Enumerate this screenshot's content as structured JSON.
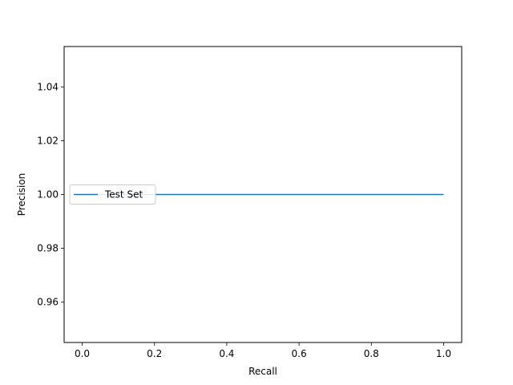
{
  "chart_data": {
    "type": "line",
    "title": "",
    "xlabel": "Recall",
    "ylabel": "Precision",
    "xlim": [
      -0.05,
      1.05
    ],
    "ylim": [
      0.945,
      1.055
    ],
    "xticks": [
      0.0,
      0.2,
      0.4,
      0.6,
      0.8,
      1.0
    ],
    "xtick_labels": [
      "0.0",
      "0.2",
      "0.4",
      "0.6",
      "0.8",
      "1.0"
    ],
    "yticks": [
      0.96,
      0.98,
      1.0,
      1.02,
      1.04
    ],
    "ytick_labels": [
      "0.96",
      "0.98",
      "1.00",
      "1.02",
      "1.04"
    ],
    "grid": false,
    "legend_position": "center-left",
    "series": [
      {
        "name": "Test Set",
        "color": "#1f77b4",
        "x": [
          0.0,
          1.0
        ],
        "y": [
          1.0,
          1.0
        ]
      }
    ]
  }
}
